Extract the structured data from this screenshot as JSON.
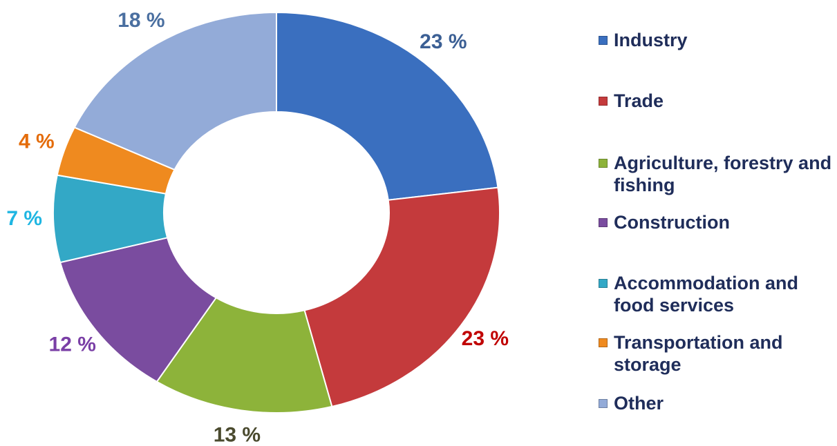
{
  "chart_data": {
    "type": "pie",
    "categories": [
      "Industry",
      "Trade",
      "Agriculture, forestry and fishing",
      "Construction",
      "Accommodation and food services",
      "Transportation and storage",
      "Other"
    ],
    "values": [
      23,
      23,
      13,
      12,
      7,
      4,
      18
    ],
    "value_labels": [
      "23 %",
      "23 %",
      "13 %",
      "12 %",
      "7 %",
      "4 %",
      "18 %"
    ],
    "colors": [
      "#3a6fbf",
      "#c43a3c",
      "#8db33a",
      "#7a4c9f",
      "#33a8c6",
      "#ef8a1f",
      "#93abd8"
    ],
    "label_colors": [
      "#3b5f94",
      "#c00000",
      "#4a4a2e",
      "#7a3fa6",
      "#1fb6e2",
      "#e46c0a",
      "#4a6fa0"
    ],
    "legend": "right"
  }
}
